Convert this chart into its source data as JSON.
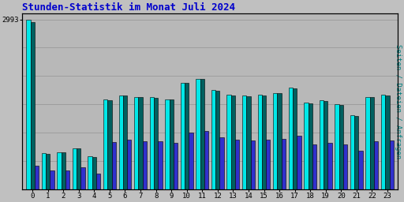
{
  "title": "Stunden-Statistik im Monat Juli 2024",
  "title_color": "#0000cc",
  "ylabel": "Seiten / Dateien / Anfragen",
  "ylabel_color": "#008080",
  "background_color": "#c0c0c0",
  "plot_bg_color": "#b8b8b8",
  "hours": [
    0,
    1,
    2,
    3,
    4,
    5,
    6,
    7,
    8,
    9,
    10,
    11,
    12,
    13,
    14,
    15,
    16,
    17,
    18,
    19,
    20,
    21,
    22,
    23
  ],
  "y_max_label": 2993,
  "bar_colors": [
    "#00e8e8",
    "#006060",
    "#3030cc"
  ],
  "bar_edgecolor": "#000000",
  "grid_color": "#999999",
  "cyan": [
    2993,
    640,
    660,
    730,
    580,
    1590,
    1660,
    1630,
    1620,
    1590,
    1880,
    1950,
    1750,
    1670,
    1650,
    1670,
    1700,
    1790,
    1530,
    1570,
    1500,
    1310,
    1630,
    1670
  ],
  "green": [
    2940,
    630,
    650,
    720,
    575,
    1570,
    1650,
    1620,
    1610,
    1580,
    1870,
    1940,
    1740,
    1660,
    1640,
    1660,
    1690,
    1780,
    1520,
    1560,
    1490,
    1295,
    1620,
    1660
  ],
  "blue": [
    420,
    340,
    340,
    385,
    280,
    840,
    875,
    845,
    845,
    825,
    1005,
    1030,
    915,
    875,
    865,
    875,
    895,
    945,
    795,
    825,
    795,
    685,
    845,
    865
  ]
}
